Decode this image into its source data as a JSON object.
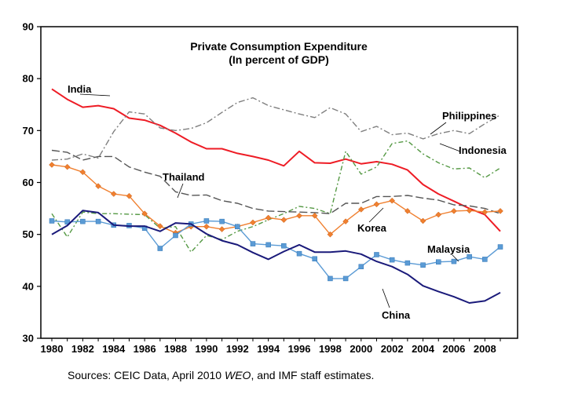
{
  "chart_data": {
    "type": "line",
    "title": "Private Consumption Expenditure",
    "subtitle": "(In percent of GDP)",
    "xlabel": "",
    "ylabel": "",
    "xlim": [
      1980,
      2009
    ],
    "ylim": [
      30,
      90
    ],
    "y_ticks": [
      30,
      40,
      50,
      60,
      70,
      80,
      90
    ],
    "x_ticks": [
      1980,
      1982,
      1984,
      1986,
      1988,
      1990,
      1992,
      1994,
      1996,
      1998,
      2000,
      2002,
      2004,
      2006,
      2008
    ],
    "grid": false,
    "x": [
      1980,
      1981,
      1982,
      1983,
      1984,
      1985,
      1986,
      1987,
      1988,
      1989,
      1990,
      1991,
      1992,
      1993,
      1994,
      1995,
      1996,
      1997,
      1998,
      1999,
      2000,
      2001,
      2002,
      2003,
      2004,
      2005,
      2006,
      2007,
      2008,
      2009
    ],
    "series": [
      {
        "name": "India",
        "color": "#ee1c25",
        "dash": "",
        "marker": "none",
        "values": [
          78,
          76,
          74.5,
          74.8,
          74.2,
          72.4,
          72,
          71,
          69.5,
          67.8,
          66.5,
          66.5,
          65.6,
          65,
          64.3,
          63.2,
          66,
          63.8,
          63.7,
          64.5,
          63.6,
          64,
          63.5,
          62.4,
          59.6,
          57.8,
          56.4,
          55,
          53.8,
          50.6
        ]
      },
      {
        "name": "Philippines",
        "color": "#7f7f7f",
        "dash": "8 3 2 3",
        "marker": "none",
        "values": [
          64.3,
          64.5,
          65.5,
          64.7,
          69.8,
          73.6,
          73.2,
          70.5,
          70,
          70.4,
          71.5,
          73.5,
          75.4,
          76.3,
          74.8,
          74,
          73.2,
          72.5,
          74.4,
          73.2,
          69.8,
          70.8,
          69.2,
          69.5,
          68.4,
          69.4,
          70,
          69.4,
          71.3,
          73
        ]
      },
      {
        "name": "Indonesia",
        "color": "#559944",
        "dash": "6 3 2 3",
        "marker": "none",
        "values": [
          54,
          49.5,
          54.3,
          54,
          54,
          53.9,
          53.8,
          51.2,
          51.5,
          46.6,
          49.8,
          49,
          50.6,
          51.5,
          52.8,
          54,
          55.4,
          55,
          54,
          66,
          61.6,
          63,
          67.5,
          68,
          65.5,
          63.8,
          62.6,
          62.8,
          60.9,
          62.8
        ]
      },
      {
        "name": "Thailand",
        "color": "#555555",
        "dash": "10 4",
        "marker": "none",
        "values": [
          66.2,
          65.8,
          64.3,
          65,
          65,
          63,
          62,
          61.2,
          58.2,
          57.5,
          57.6,
          56.5,
          56,
          55,
          54.5,
          54.4,
          54.3,
          54.2,
          54,
          56,
          56,
          57.3,
          57.3,
          57.5,
          57,
          56.6,
          55.7,
          55.5,
          55,
          54
        ]
      },
      {
        "name": "Korea",
        "color": "#f08030",
        "dash": "",
        "marker": "diamond",
        "values": [
          63.4,
          63,
          62,
          59.3,
          57.8,
          57.4,
          54,
          51.6,
          50.3,
          51.5,
          51.5,
          51,
          51.5,
          52.3,
          53.2,
          52.8,
          53.6,
          53.6,
          50,
          52.5,
          54.8,
          55.8,
          56.5,
          54.5,
          52.6,
          53.8,
          54.5,
          54.6,
          54.3,
          54.5
        ]
      },
      {
        "name": "Malaysia",
        "color": "#5b9bd5",
        "dash": "",
        "marker": "square",
        "values": [
          52.6,
          52.4,
          52.5,
          52.5,
          51.8,
          51.7,
          51.2,
          47.3,
          49.8,
          52,
          52.6,
          52.5,
          51.5,
          48.2,
          48,
          47.8,
          46.3,
          45.3,
          41.5,
          41.5,
          43.8,
          46.1,
          45.1,
          44.5,
          44.1,
          44.7,
          44.8,
          45.7,
          45.2,
          47.6
        ]
      },
      {
        "name": "China",
        "color": "#1a1a7a",
        "dash": "",
        "marker": "none",
        "values": [
          50,
          51.7,
          54.6,
          54.2,
          51.8,
          51.6,
          51.6,
          50.6,
          52.2,
          52,
          50.1,
          48.8,
          48,
          46.5,
          45.2,
          46.7,
          48,
          46.6,
          46.6,
          46.8,
          46.2,
          44.8,
          43.8,
          42.3,
          40.1,
          39,
          38,
          36.8,
          37.2,
          38.8
        ]
      }
    ],
    "annotations": [
      {
        "text": "India",
        "series": "India"
      },
      {
        "text": "Philippines",
        "series": "Philippines"
      },
      {
        "text": "Indonesia",
        "series": "Indonesia"
      },
      {
        "text": "Thailand",
        "series": "Thailand"
      },
      {
        "text": "Korea",
        "series": "Korea"
      },
      {
        "text": "Malaysia",
        "series": "Malaysia"
      },
      {
        "text": "China",
        "series": "China"
      }
    ]
  },
  "source": {
    "prefix": "Sources: CEIC Data, April 2010 ",
    "italic": "WEO",
    "suffix": ", and IMF staff estimates."
  }
}
